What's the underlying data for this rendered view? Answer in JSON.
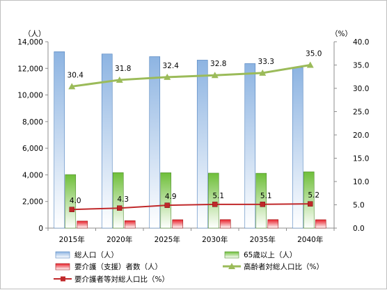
{
  "chart_data": {
    "type": "bar",
    "categories": [
      "2015年",
      "2020年",
      "2025年",
      "2030年",
      "2035年",
      "2040年"
    ],
    "left_axis": {
      "unit_label": "（人）",
      "min": 0,
      "max": 14000,
      "step": 2000,
      "ticks": [
        "0",
        "2,000",
        "4,000",
        "6,000",
        "8,000",
        "10,000",
        "12,000",
        "14,000"
      ]
    },
    "right_axis": {
      "unit_label": "（%）",
      "min": 0,
      "max": 40,
      "step": 5,
      "ticks": [
        "0.0",
        "5.0",
        "10.0",
        "15.0",
        "20.0",
        "25.0",
        "30.0",
        "35.0",
        "40.0"
      ]
    },
    "series": [
      {
        "name": "総人口（人）",
        "kind": "bar",
        "axis": "left",
        "color": "#8db4e2",
        "values": [
          13250,
          13080,
          12880,
          12620,
          12360,
          12060
        ]
      },
      {
        "name": "65歳以上（人）",
        "kind": "bar",
        "axis": "left",
        "color": "#92d050",
        "values": [
          4020,
          4170,
          4160,
          4130,
          4120,
          4230
        ]
      },
      {
        "name": "要介護（支援）者数（人）",
        "kind": "bar",
        "axis": "left",
        "color": "#e8202a",
        "values": [
          530,
          560,
          630,
          640,
          640,
          630
        ]
      },
      {
        "name": "高齢者対総人口比（%）",
        "kind": "line",
        "axis": "right",
        "color": "#9bbb59",
        "marker": "triangle",
        "values": [
          30.4,
          31.8,
          32.4,
          32.8,
          33.3,
          35.0
        ],
        "labels": [
          "30.4",
          "31.8",
          "32.4",
          "32.8",
          "33.3",
          "35.0"
        ]
      },
      {
        "name": "要介護者等対総人口比（%）",
        "kind": "line",
        "axis": "right",
        "color": "#c0282a",
        "marker": "square",
        "values": [
          4.0,
          4.3,
          4.9,
          5.1,
          5.1,
          5.2
        ],
        "labels": [
          "4.0",
          "4.3",
          "4.9",
          "5.1",
          "5.1",
          "5.2"
        ]
      }
    ],
    "legend_position": "bottom",
    "grid": false
  }
}
